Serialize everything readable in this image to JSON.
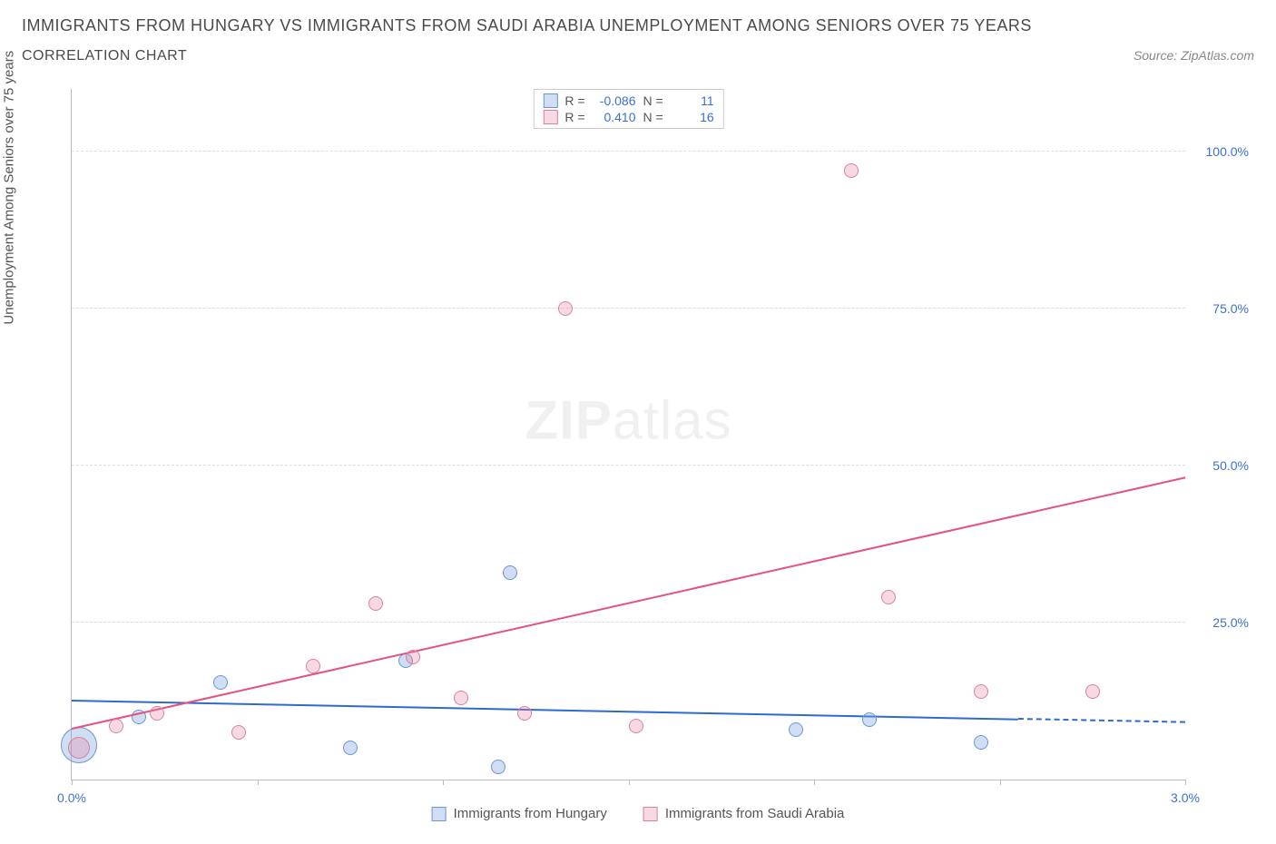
{
  "header": {
    "title": "IMMIGRANTS FROM HUNGARY VS IMMIGRANTS FROM SAUDI ARABIA UNEMPLOYMENT AMONG SENIORS OVER 75 YEARS",
    "subtitle": "CORRELATION CHART",
    "source": "Source: ZipAtlas.com"
  },
  "chart": {
    "type": "scatter",
    "ylabel": "Unemployment Among Seniors over 75 years",
    "xlim": [
      0.0,
      3.0
    ],
    "ylim": [
      0.0,
      110.0
    ],
    "xticks": [
      {
        "pos": 0.0,
        "label": "0.0%"
      },
      {
        "pos": 0.5,
        "label": ""
      },
      {
        "pos": 1.0,
        "label": ""
      },
      {
        "pos": 1.5,
        "label": ""
      },
      {
        "pos": 2.0,
        "label": ""
      },
      {
        "pos": 2.5,
        "label": ""
      },
      {
        "pos": 3.0,
        "label": "3.0%"
      }
    ],
    "yticks": [
      {
        "pos": 25.0,
        "label": "25.0%"
      },
      {
        "pos": 50.0,
        "label": "50.0%"
      },
      {
        "pos": 75.0,
        "label": "75.0%"
      },
      {
        "pos": 100.0,
        "label": "100.0%"
      }
    ],
    "series": [
      {
        "name": "Immigrants from Hungary",
        "fill": "rgba(120,160,220,0.35)",
        "stroke": "#6a95d8",
        "line_color": "#2f6ad0",
        "points": [
          {
            "x": 0.02,
            "y": 5.5,
            "r": 20
          },
          {
            "x": 0.18,
            "y": 10.0,
            "r": 8
          },
          {
            "x": 0.4,
            "y": 15.5,
            "r": 8
          },
          {
            "x": 0.75,
            "y": 5.0,
            "r": 8
          },
          {
            "x": 0.9,
            "y": 19.0,
            "r": 8
          },
          {
            "x": 1.15,
            "y": 2.0,
            "r": 8
          },
          {
            "x": 1.18,
            "y": 33.0,
            "r": 8
          },
          {
            "x": 1.95,
            "y": 8.0,
            "r": 8
          },
          {
            "x": 2.15,
            "y": 9.5,
            "r": 8
          },
          {
            "x": 2.45,
            "y": 6.0,
            "r": 8
          }
        ],
        "trend": {
          "x1": 0.0,
          "y1": 12.5,
          "x2": 2.55,
          "y2": 9.5,
          "dashed_to_x": 3.0
        }
      },
      {
        "name": "Immigrants from Saudi Arabia",
        "fill": "rgba(230,130,165,0.30)",
        "stroke": "#dd7fa2",
        "line_color": "#e5527f",
        "points": [
          {
            "x": 0.02,
            "y": 5.0,
            "r": 12
          },
          {
            "x": 0.12,
            "y": 8.5,
            "r": 8
          },
          {
            "x": 0.23,
            "y": 10.5,
            "r": 8
          },
          {
            "x": 0.45,
            "y": 7.5,
            "r": 8
          },
          {
            "x": 0.65,
            "y": 18.0,
            "r": 8
          },
          {
            "x": 0.82,
            "y": 28.0,
            "r": 8
          },
          {
            "x": 0.92,
            "y": 19.5,
            "r": 8
          },
          {
            "x": 1.05,
            "y": 13.0,
            "r": 8
          },
          {
            "x": 1.22,
            "y": 10.5,
            "r": 8
          },
          {
            "x": 1.33,
            "y": 75.0,
            "r": 8
          },
          {
            "x": 1.52,
            "y": 8.5,
            "r": 8
          },
          {
            "x": 2.1,
            "y": 97.0,
            "r": 8
          },
          {
            "x": 2.2,
            "y": 29.0,
            "r": 8
          },
          {
            "x": 2.45,
            "y": 14.0,
            "r": 8
          },
          {
            "x": 2.75,
            "y": 14.0,
            "r": 8
          }
        ],
        "trend": {
          "x1": 0.0,
          "y1": 8.0,
          "x2": 3.0,
          "y2": 48.0
        }
      }
    ],
    "stats": [
      {
        "swatch_fill": "rgba(120,160,220,0.35)",
        "swatch_stroke": "#6a95d8",
        "r": "-0.086",
        "n": "11"
      },
      {
        "swatch_fill": "rgba(230,130,165,0.30)",
        "swatch_stroke": "#dd7fa2",
        "r": "0.410",
        "n": "16"
      }
    ],
    "stat_labels": {
      "r": "R =",
      "n": "N ="
    },
    "watermark": {
      "bold": "ZIP",
      "light": "atlas"
    }
  },
  "legend_bottom": [
    {
      "label": "Immigrants from Hungary",
      "fill": "rgba(120,160,220,0.35)",
      "stroke": "#6a95d8"
    },
    {
      "label": "Immigrants from Saudi Arabia",
      "fill": "rgba(230,130,165,0.30)",
      "stroke": "#dd7fa2"
    }
  ]
}
